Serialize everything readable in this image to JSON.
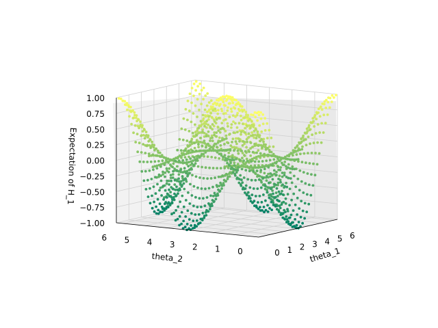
{
  "chart_data": {
    "type": "scatter",
    "projection": "3d",
    "function": "cos(theta_1) * cos(theta_2)",
    "xlabel": "theta_1",
    "ylabel": "theta_2",
    "zlabel": "Expectation of H_1",
    "x_ticks": [
      "0",
      "1",
      "2",
      "3",
      "4",
      "5",
      "6"
    ],
    "y_ticks": [
      "6",
      "5",
      "4",
      "3",
      "2",
      "1",
      "0"
    ],
    "z_ticks": [
      "1.00",
      "0.75",
      "0.50",
      "0.25",
      "0.00",
      "−0.25",
      "−0.50",
      "−0.75",
      "−1.00"
    ],
    "xlim": [
      0,
      6.28
    ],
    "ylim": [
      0,
      6.28
    ],
    "zlim": [
      -1,
      1
    ],
    "colormap": "summer",
    "colormap_low": "#008066",
    "colormap_high": "#ffff66",
    "grid": true,
    "samples": {
      "theta_1": [
        0,
        0.1667,
        0.3333,
        0.5,
        0.6667,
        0.8333,
        1.0,
        1.1667,
        1.3333,
        1.5,
        1.6667,
        1.8333,
        2.0,
        2.1667,
        2.3333,
        2.5,
        2.6667,
        2.8333,
        3.0,
        3.1667,
        3.3333,
        3.5,
        3.6667,
        3.8333,
        4.0,
        4.1667,
        4.3333,
        4.5,
        4.6667,
        4.8333,
        5.0,
        5.1667,
        5.3333,
        5.5,
        5.6667,
        5.8333,
        6.0,
        6.1667
      ],
      "theta_2": [
        0,
        0.1667,
        0.3333,
        0.5,
        0.6667,
        0.8333,
        1.0,
        1.1667,
        1.3333,
        1.5,
        1.6667,
        1.8333,
        2.0,
        2.1667,
        2.3333,
        2.5,
        2.6667,
        2.8333,
        3.0,
        3.1667,
        3.3333,
        3.5,
        3.6667,
        3.8333,
        4.0,
        4.1667,
        4.3333,
        4.5,
        4.6667,
        4.8333,
        5.0,
        5.1667,
        5.3333,
        5.5,
        5.6667,
        5.8333,
        6.0,
        6.1667
      ]
    }
  }
}
